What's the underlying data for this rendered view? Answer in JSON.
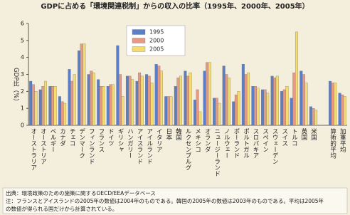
{
  "chart_data": {
    "type": "bar",
    "title": "GDPに占める「環境関連税制」からの収入の比率（1995年、2000年、2005年）",
    "y_label": "GDP比（%）",
    "categories": [
      "オーストラリア",
      "オーストリア",
      "ベルギー",
      "カナダ",
      "チェコ",
      "デンマーク",
      "フィンランド",
      "フランス",
      "ドイツ",
      "ギリシャ",
      "ハンガリー",
      "アイスランド",
      "アイルランド",
      "イタリア",
      "日本",
      "韓国",
      "ルクセンブルグ",
      "メキシコ",
      "オランダ",
      "ニュージーランド",
      "ノルウェー",
      "ポーランド",
      "ポルトガル",
      "スロバキア",
      "スペイン",
      "スウェーデン",
      "スイス",
      "トルコ",
      "英国",
      "米国",
      null,
      "算術的平均",
      "加重平均"
    ],
    "series": [
      {
        "name": "1995",
        "color": "#5b7fc6",
        "values": [
          2.6,
          2.1,
          2.3,
          1.7,
          3.3,
          4.4,
          3.0,
          2.7,
          2.3,
          4.7,
          2.9,
          2.6,
          3.0,
          3.6,
          1.7,
          2.3,
          3.2,
          1.5,
          3.2,
          1.6,
          3.5,
          1.4,
          3.6,
          2.3,
          2.1,
          2.9,
          2.0,
          1.6,
          3.2,
          1.1,
          null,
          2.6,
          1.9
        ]
      },
      {
        "name": "2000",
        "color": "#e59a86",
        "values": [
          2.4,
          2.3,
          2.3,
          1.4,
          2.6,
          4.8,
          3.2,
          2.3,
          2.4,
          3.0,
          2.9,
          3.1,
          2.9,
          3.5,
          1.7,
          2.8,
          2.9,
          2.1,
          3.7,
          1.6,
          3.0,
          1.8,
          3.0,
          2.3,
          2.1,
          2.8,
          2.1,
          3.1,
          3.0,
          1.0,
          null,
          2.5,
          1.8
        ]
      },
      {
        "name": "2005",
        "color": "#f4dd6e",
        "values": [
          2.0,
          2.6,
          2.3,
          1.3,
          3.0,
          4.8,
          3.1,
          2.3,
          2.4,
          1.7,
          2.7,
          2.9,
          2.5,
          3.2,
          1.7,
          2.9,
          3.1,
          0.8,
          3.7,
          1.3,
          2.8,
          2.0,
          3.1,
          2.2,
          1.9,
          2.9,
          2.3,
          5.5,
          2.5,
          0.9,
          null,
          2.5,
          1.7
        ]
      }
    ],
    "ylim": [
      0,
      6
    ],
    "yticks": [
      0,
      1,
      2,
      3,
      4,
      5,
      6
    ],
    "notes": [
      "出典：環境政策のための施策に関するOECD/EEAデータベース",
      "注：フランスとアイスランドの2005年の数値は2004年のものである。韓国の2005年の数値は2003年のものである。平均は2005年",
      "の数値が得られる国だけから計算されている。"
    ]
  }
}
